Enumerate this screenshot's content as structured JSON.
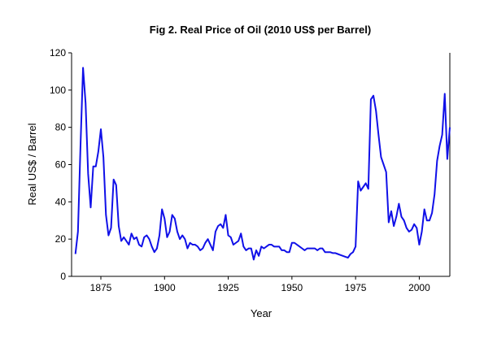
{
  "chart_data": {
    "type": "line",
    "title": "Fig 2. Real Price of Oil (2010 US$ per Barrel)",
    "xlabel": "Year",
    "ylabel": "Real US$ / Barrel",
    "x": [
      1865,
      1866,
      1867,
      1868,
      1869,
      1870,
      1871,
      1872,
      1873,
      1874,
      1875,
      1876,
      1877,
      1878,
      1879,
      1880,
      1881,
      1882,
      1883,
      1884,
      1885,
      1886,
      1887,
      1888,
      1889,
      1890,
      1891,
      1892,
      1893,
      1894,
      1895,
      1896,
      1897,
      1898,
      1899,
      1900,
      1901,
      1902,
      1903,
      1904,
      1905,
      1906,
      1907,
      1908,
      1909,
      1910,
      1911,
      1912,
      1913,
      1914,
      1915,
      1916,
      1917,
      1918,
      1919,
      1920,
      1921,
      1922,
      1923,
      1924,
      1925,
      1926,
      1927,
      1928,
      1929,
      1930,
      1931,
      1932,
      1933,
      1934,
      1935,
      1936,
      1937,
      1938,
      1939,
      1940,
      1941,
      1942,
      1943,
      1944,
      1945,
      1946,
      1947,
      1948,
      1949,
      1950,
      1951,
      1952,
      1953,
      1954,
      1955,
      1956,
      1957,
      1958,
      1959,
      1960,
      1961,
      1962,
      1963,
      1964,
      1965,
      1966,
      1967,
      1968,
      1969,
      1970,
      1971,
      1972,
      1973,
      1974,
      1975,
      1976,
      1977,
      1978,
      1979,
      1980,
      1981,
      1982,
      1983,
      1984,
      1985,
      1986,
      1987,
      1988,
      1989,
      1990,
      1991,
      1992,
      1993,
      1994,
      1995,
      1996,
      1997,
      1998,
      1999,
      2000,
      2001,
      2002,
      2003,
      2004,
      2005,
      2006,
      2007,
      2008,
      2009,
      2010,
      2011,
      2012
    ],
    "series": [
      {
        "name": "Real Price of Oil",
        "color": "#1010e8",
        "values": [
          12,
          24,
          70,
          112,
          93,
          55,
          37,
          59,
          59,
          67,
          79,
          64,
          33,
          22,
          26,
          52,
          49,
          27,
          19,
          21,
          19,
          17,
          23,
          20,
          21,
          17,
          16,
          21,
          22,
          20,
          16,
          13,
          15,
          22,
          36,
          31,
          21,
          24,
          33,
          31,
          24,
          20,
          22,
          20,
          15,
          18,
          17,
          17,
          16,
          14,
          15,
          18,
          20,
          17,
          14,
          24,
          27,
          28,
          26,
          33,
          22,
          21,
          17,
          18,
          19,
          23,
          16,
          14,
          15,
          15,
          9,
          14,
          11,
          16,
          15,
          16,
          17,
          17,
          16,
          16,
          16,
          14,
          14,
          13,
          13,
          18,
          18,
          17,
          16,
          15,
          14,
          15,
          15,
          15,
          15,
          14,
          15,
          15,
          13,
          13,
          13,
          12.5,
          12.5,
          12,
          11.5,
          11,
          10.5,
          10,
          12,
          13,
          16,
          51,
          46,
          48,
          50,
          47,
          95,
          97,
          89,
          76,
          64,
          60,
          56,
          29,
          35,
          27,
          32,
          39,
          32,
          30,
          26,
          24,
          25,
          28,
          26,
          17,
          24,
          36,
          30,
          30,
          34,
          44,
          62,
          70,
          76,
          98,
          63,
          80
        ]
      }
    ],
    "xlim": [
      1863.5,
      2012
    ],
    "xticks": [
      1875,
      1900,
      1925,
      1950,
      1975,
      2000
    ],
    "ylim": [
      0,
      120
    ],
    "yticks": [
      0,
      20,
      40,
      60,
      80,
      100,
      120
    ]
  }
}
